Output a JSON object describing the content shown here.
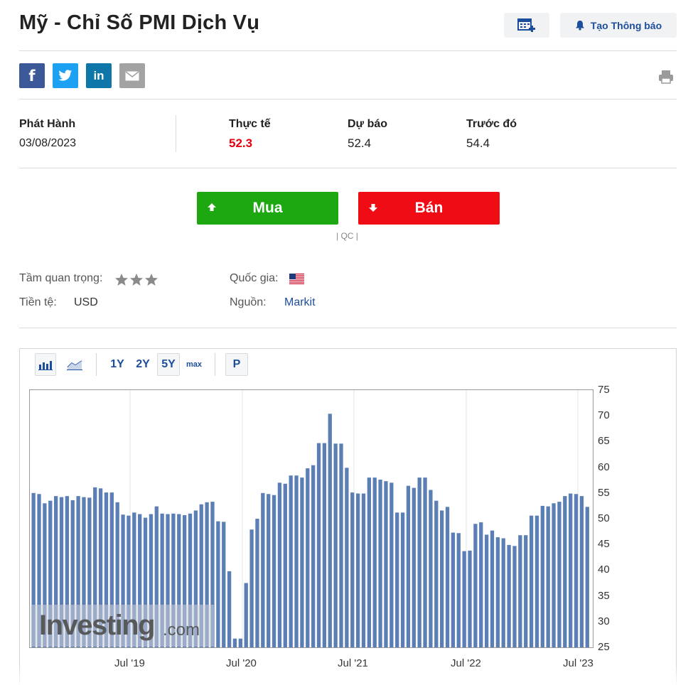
{
  "header": {
    "title": "Mỹ - Chỉ Số PMI Dịch Vụ",
    "alert_button": "Tạo Thông báo"
  },
  "share": {
    "facebook": "f",
    "linkedin": "in"
  },
  "release": {
    "release_label": "Phát Hành",
    "release_date": "03/08/2023",
    "actual_label": "Thực tế",
    "actual_value": "52.3",
    "forecast_label": "Dự báo",
    "forecast_value": "52.4",
    "previous_label": "Trước đó",
    "previous_value": "54.4"
  },
  "trade": {
    "buy_label": "Mua",
    "sell_label": "Bán",
    "ad_label": "| QC |"
  },
  "meta": {
    "importance_label": "Tầm quan trọng:",
    "importance_stars": 3,
    "currency_label": "Tiền tệ:",
    "currency_value": "USD",
    "country_label": "Quốc gia:",
    "country_flag": "us-flag-icon",
    "source_label": "Nguồn:",
    "source_value": "Markit"
  },
  "toolbar": {
    "ranges": [
      "1Y",
      "2Y",
      "5Y",
      "max"
    ],
    "active_range": "5Y",
    "p_label": "P"
  },
  "watermark": {
    "brand": "Investing",
    "suffix": ".com"
  },
  "colors": {
    "bar": "#5b7fb5",
    "actual": "#e3000f",
    "buy": "#1da812",
    "sell": "#ef0c15",
    "link": "#1d4e9c"
  },
  "chart_data": {
    "type": "bar",
    "ylim": [
      25,
      75
    ],
    "yticks": [
      75,
      70,
      65,
      60,
      55,
      50,
      45,
      40,
      35,
      30,
      25
    ],
    "xticks": [
      "Jul '19",
      "Jul '20",
      "Jul '21",
      "Jul '22",
      "Jul '23"
    ],
    "grid": true,
    "series": [
      {
        "values": [
          55.0,
          54.8,
          53.0,
          53.5,
          54.4,
          54.2,
          54.4,
          53.6,
          54.4,
          54.2,
          54.1,
          56.1,
          55.9,
          55.1,
          55.1,
          53.2,
          50.8,
          50.6,
          51.2,
          50.9,
          50.2,
          50.9,
          52.4,
          51.0,
          50.9,
          51.0,
          50.9,
          50.7,
          51.0,
          51.6,
          52.8,
          53.2,
          53.3,
          49.5,
          49.4,
          39.8,
          26.7,
          26.7,
          37.5,
          47.9,
          50.0,
          55.0,
          54.8,
          54.6,
          57.0,
          56.8,
          58.4,
          58.4,
          58.0,
          59.8,
          60.4,
          64.7,
          64.7,
          70.4,
          64.6,
          64.6,
          59.9,
          55.1,
          54.9,
          54.9,
          58.0,
          58.0,
          57.6,
          57.3,
          57.0,
          51.2,
          51.2,
          56.4,
          56.0,
          58.0,
          58.0,
          55.6,
          53.5,
          51.6,
          52.3,
          47.3,
          47.2,
          43.7,
          43.8,
          49.0,
          49.3,
          46.9,
          47.7,
          46.4,
          46.2,
          44.9,
          44.7,
          46.8,
          46.8,
          50.6,
          50.6,
          52.5,
          52.4,
          53.0,
          53.3,
          54.4,
          54.9,
          54.8,
          54.4,
          52.3
        ]
      }
    ]
  }
}
